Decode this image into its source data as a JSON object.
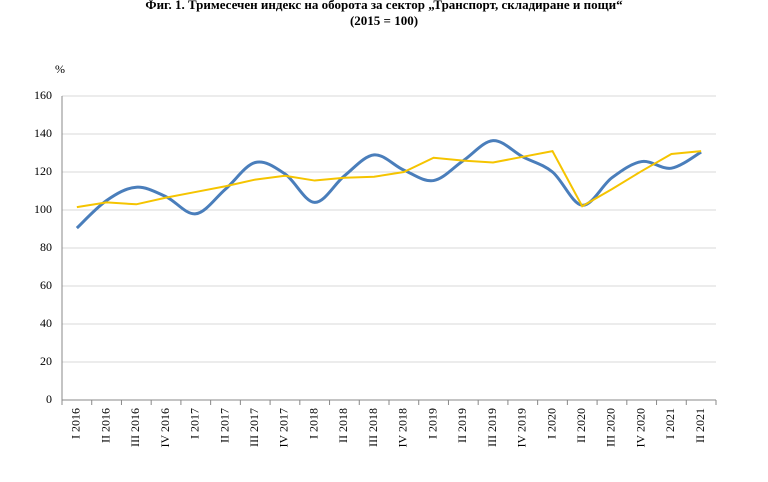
{
  "chart_data": {
    "type": "line",
    "title": "Фиг. 1. Тримесечен индекс на оборота за сектор „Транспорт, складиране и пощи“",
    "subtitle": "(2015 = 100)",
    "y_label": "%",
    "categories": [
      "I 2016",
      "II 2016",
      "III 2016",
      "IV 2016",
      "I 2017",
      "II 2017",
      "III 2017",
      "IV 2017",
      "I 2018",
      "II 2018",
      "III 2018",
      "IV 2018",
      "I 2019",
      "II 2019",
      "III 2019",
      "IV 2019",
      "I 2020",
      "II 2020",
      "III 2020",
      "IV 2020",
      "I 2021",
      "II 2021"
    ],
    "series": [
      {
        "color": "#4a7ebb",
        "smooth": true,
        "values": [
          90.5,
          105,
          112,
          107,
          98,
          111,
          125,
          119,
          104,
          118,
          129,
          121,
          115.5,
          126,
          136.5,
          128,
          120,
          102.5,
          117,
          125.5,
          122,
          130.5
        ]
      },
      {
        "color": "#f5c400",
        "smooth": false,
        "values": [
          101.5,
          104,
          103,
          106.5,
          109.5,
          112.5,
          116,
          118,
          115.5,
          117,
          117.5,
          120,
          127.5,
          126,
          125,
          128,
          131,
          102,
          111,
          120.5,
          129.5,
          131
        ]
      }
    ],
    "ylim": [
      0,
      160
    ],
    "yticks": [
      0,
      20,
      40,
      60,
      80,
      100,
      120,
      140,
      160
    ],
    "grid": true
  }
}
